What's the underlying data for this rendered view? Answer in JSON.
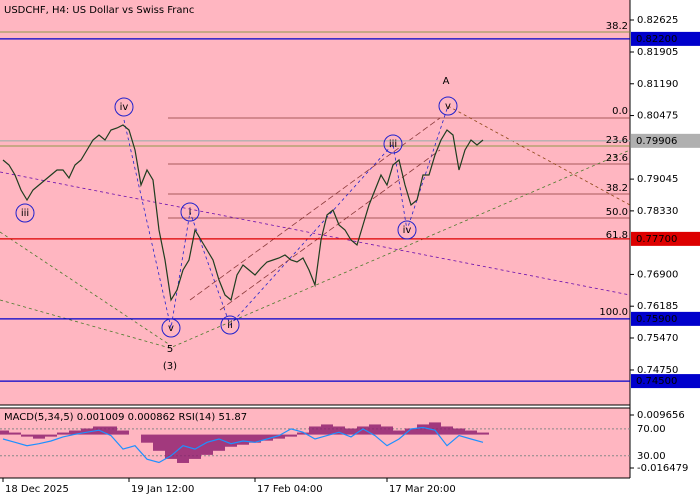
{
  "chart_data": [
    {
      "type": "line",
      "title": "USDCHF, H4:  US Dollar vs Swiss Franc",
      "x": [
        0,
        1,
        2,
        3,
        4,
        5,
        6,
        7,
        8,
        9,
        10,
        11,
        12,
        13,
        14,
        15,
        16,
        17,
        18,
        19,
        20,
        21,
        22,
        23,
        24,
        25,
        26,
        27,
        28,
        29,
        30,
        31,
        32,
        33,
        34,
        35,
        36,
        37,
        38,
        39,
        40,
        41,
        42,
        43,
        44,
        45,
        46,
        47,
        48,
        49,
        50,
        51,
        52,
        53,
        54,
        55,
        56,
        57,
        58,
        59,
        60,
        61,
        62,
        63,
        64,
        65,
        66,
        67,
        68,
        69,
        70,
        71,
        72,
        73,
        74,
        75,
        76,
        77,
        78,
        79,
        80
      ],
      "series": [
        {
          "color": "#1f3d1f",
          "values": [
            0.79475,
            0.79363,
            0.79138,
            0.788,
            0.78575,
            0.788,
            0.78913,
            0.79025,
            0.79138,
            0.7925,
            0.7925,
            0.7907,
            0.79363,
            0.79475,
            0.797,
            0.79925,
            0.80038,
            0.79925,
            0.8015,
            0.80195,
            0.80263,
            0.8015,
            0.797,
            0.78913,
            0.7925,
            0.79025,
            0.779,
            0.77225,
            0.76325,
            0.7655,
            0.77,
            0.77225,
            0.779,
            0.77675,
            0.7745,
            0.77225,
            0.76775,
            0.76438,
            0.76325,
            0.76888,
            0.77113,
            0.77,
            0.76888,
            0.77045,
            0.7718,
            0.77225,
            0.7727,
            0.77338,
            0.77225,
            0.7718,
            0.7727,
            0.77,
            0.76663,
            0.77675,
            0.78238,
            0.7835,
            0.78013,
            0.779,
            0.77675,
            0.77563,
            0.78013,
            0.78463,
            0.788,
            0.79138,
            0.78913,
            0.79363,
            0.79475,
            0.78913,
            0.78463,
            0.78575,
            0.79138,
            0.79138,
            0.79588,
            0.79925,
            0.8015,
            0.80038,
            0.7925,
            0.797,
            0.79925,
            0.79813,
            0.79925
          ]
        }
      ],
      "xlim": [
        -0.5,
        104.5
      ],
      "xticks": [
        {
          "value": 0,
          "label": "18 Dec 2025"
        },
        {
          "value": 21,
          "label": "19 Jan 12:00"
        },
        {
          "value": 42,
          "label": "17 Feb 04:00"
        },
        {
          "value": 64,
          "label": "17 Mar 20:00"
        }
      ],
      "ylim": [
        0.73962,
        0.83075
      ],
      "yticks": [
        0.82625,
        0.81905,
        {
          "value": 0.8119,
          "label": "0.81190"
        },
        0.80475,
        0.79045,
        {
          "value": 0.7833,
          "label": "0.78330"
        },
        {
          "value": 0.769,
          "label": "0.76900"
        },
        0.76185,
        {
          "value": 0.7547,
          "label": "0.75470"
        },
        {
          "value": 0.7475,
          "label": "0.74750"
        }
      ],
      "price_levels": [
        {
          "value": 0.822,
          "label": "0.82200",
          "color": "#0000cc"
        },
        {
          "value": 0.79906,
          "label": "0.79906",
          "color": "#b0b0b0"
        },
        {
          "value": 0.777,
          "label": "0.77700",
          "color": "#dd0000"
        },
        {
          "value": 0.759,
          "label": "0.75900",
          "color": "#0000cc"
        },
        {
          "value": 0.745,
          "label": "0.74500",
          "color": "#0000cc"
        }
      ],
      "fib_labels": [
        "38.2",
        "0.0",
        "23.6",
        "23.6",
        "38.2",
        "50.0",
        "61.8",
        "100.0"
      ],
      "wave_labels": [
        "iii",
        "iv",
        "v",
        "i",
        "ii",
        "iii",
        "iv",
        "v",
        "A",
        "5",
        "(3)"
      ]
    },
    {
      "type": "line",
      "title": "MACD(5,34,5) 0.001009 0.000862 RSI(14) 51.87",
      "x": [
        0,
        2,
        4,
        6,
        8,
        10,
        12,
        14,
        16,
        18,
        20,
        22,
        24,
        26,
        28,
        30,
        32,
        34,
        36,
        38,
        40,
        42,
        44,
        46,
        48,
        50,
        52,
        54,
        56,
        58,
        60,
        62,
        64,
        66,
        68,
        70,
        72,
        74,
        76,
        78,
        80
      ],
      "series": [
        {
          "kind": "bar",
          "color": "#8b1a6b",
          "values": [
            0.002,
            0.001,
            -0.001,
            -0.002,
            -0.001,
            0.001,
            0.002,
            0.003,
            0.004,
            0.004,
            0.002,
            0.0,
            -0.004,
            -0.008,
            -0.012,
            -0.014,
            -0.012,
            -0.01,
            -0.008,
            -0.006,
            -0.005,
            -0.004,
            -0.003,
            -0.002,
            -0.001,
            0.001,
            0.004,
            0.005,
            0.004,
            0.003,
            0.004,
            0.005,
            0.004,
            0.002,
            0.003,
            0.005,
            0.006,
            0.004,
            0.003,
            0.002,
            0.001
          ]
        },
        {
          "kind": "line",
          "axis": "y2",
          "color": "#1e90ff",
          "values": [
            55,
            50,
            45,
            48,
            52,
            58,
            62,
            65,
            68,
            60,
            40,
            45,
            25,
            20,
            30,
            45,
            40,
            50,
            55,
            48,
            52,
            50,
            55,
            60,
            70,
            65,
            55,
            60,
            65,
            58,
            70,
            60,
            45,
            55,
            70,
            72,
            68,
            45,
            60,
            55,
            50
          ]
        }
      ],
      "xlim": [
        -0.5,
        104.5
      ],
      "ylim": [
        -0.02141,
        0.01311
      ],
      "yticks": [
        0.009656,
        -0.016479
      ],
      "y2lim": [
        -3,
        101
      ],
      "y2ticks": [
        {
          "value": 70,
          "label": "70.00"
        },
        {
          "value": 30,
          "label": "30.00"
        }
      ]
    }
  ]
}
